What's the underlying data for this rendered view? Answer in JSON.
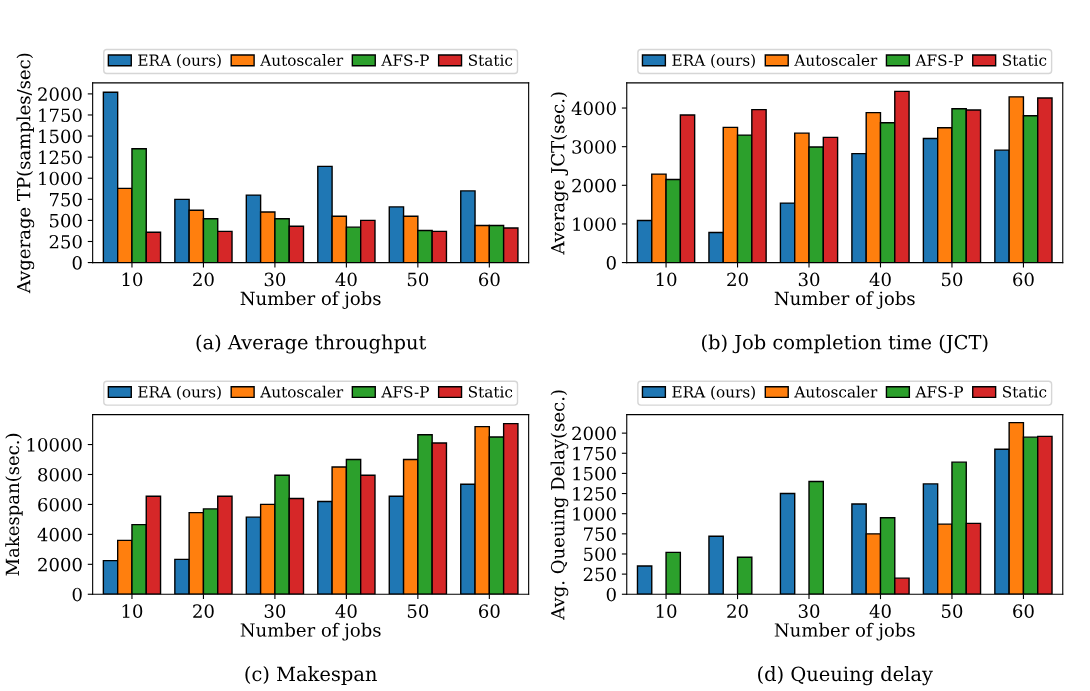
{
  "chart_data": [
    {
      "type": "bar",
      "title": "(a) Average throughput",
      "xlabel": "Number of jobs",
      "ylabel": "Avgerage TP(samples/sec)",
      "categories": [
        "10",
        "20",
        "30",
        "40",
        "50",
        "60"
      ],
      "ylim": [
        0,
        2130
      ],
      "yticks": [
        0,
        250,
        500,
        750,
        1000,
        1250,
        1500,
        1750,
        2000
      ],
      "legend": "top",
      "grid": false,
      "series": [
        {
          "name": "ERA (ours)",
          "color": "#1f77b4",
          "values": [
            2020,
            750,
            800,
            1140,
            660,
            850
          ]
        },
        {
          "name": "Autoscaler",
          "color": "#ff7f0e",
          "values": [
            880,
            620,
            600,
            550,
            550,
            440
          ]
        },
        {
          "name": "AFS-P",
          "color": "#2ca02c",
          "values": [
            1350,
            520,
            520,
            420,
            380,
            440
          ]
        },
        {
          "name": "Static",
          "color": "#d62728",
          "values": [
            360,
            370,
            430,
            500,
            370,
            410
          ]
        }
      ]
    },
    {
      "type": "bar",
      "title": "(b) Job completion time (JCT)",
      "xlabel": "Number of jobs",
      "ylabel": "Average JCT(sec.)",
      "categories": [
        "10",
        "20",
        "30",
        "40",
        "50",
        "60"
      ],
      "ylim": [
        0,
        4650
      ],
      "yticks": [
        0,
        1000,
        2000,
        3000,
        4000
      ],
      "legend": "top",
      "grid": false,
      "series": [
        {
          "name": "ERA (ours)",
          "color": "#1f77b4",
          "values": [
            1090,
            780,
            1540,
            2820,
            3210,
            2910
          ]
        },
        {
          "name": "Autoscaler",
          "color": "#ff7f0e",
          "values": [
            2290,
            3500,
            3350,
            3880,
            3490,
            4290
          ]
        },
        {
          "name": "AFS-P",
          "color": "#2ca02c",
          "values": [
            2150,
            3300,
            2990,
            3620,
            3980,
            3800
          ]
        },
        {
          "name": "Static",
          "color": "#d62728",
          "values": [
            3820,
            3960,
            3240,
            4430,
            3950,
            4260
          ]
        }
      ]
    },
    {
      "type": "bar",
      "title": "(c) Makespan",
      "xlabel": "Number of jobs",
      "ylabel": "Makespan(sec.)",
      "categories": [
        "10",
        "20",
        "30",
        "40",
        "50",
        "60"
      ],
      "ylim": [
        0,
        12000
      ],
      "yticks": [
        0,
        2000,
        4000,
        6000,
        8000,
        10000
      ],
      "legend": "top",
      "grid": false,
      "series": [
        {
          "name": "ERA (ours)",
          "color": "#1f77b4",
          "values": [
            2250,
            2330,
            5150,
            6200,
            6550,
            7350
          ]
        },
        {
          "name": "Autoscaler",
          "color": "#ff7f0e",
          "values": [
            3600,
            5450,
            6000,
            8500,
            9000,
            11200
          ]
        },
        {
          "name": "AFS-P",
          "color": "#2ca02c",
          "values": [
            4650,
            5700,
            7950,
            9000,
            10650,
            10500
          ]
        },
        {
          "name": "Static",
          "color": "#d62728",
          "values": [
            6550,
            6550,
            6400,
            7950,
            10100,
            11400
          ]
        }
      ]
    },
    {
      "type": "bar",
      "title": "(d) Queuing delay",
      "xlabel": "Number of jobs",
      "ylabel": "Avg. Queuing Delay(sec.)",
      "categories": [
        "10",
        "20",
        "30",
        "40",
        "50",
        "60"
      ],
      "ylim": [
        0,
        2230
      ],
      "yticks": [
        0,
        250,
        500,
        750,
        1000,
        1250,
        1500,
        1750,
        2000
      ],
      "legend": "top",
      "grid": false,
      "series": [
        {
          "name": "ERA (ours)",
          "color": "#1f77b4",
          "values": [
            350,
            720,
            1250,
            1120,
            1370,
            1800
          ]
        },
        {
          "name": "Autoscaler",
          "color": "#ff7f0e",
          "values": [
            null,
            null,
            null,
            750,
            870,
            2130
          ]
        },
        {
          "name": "AFS-P",
          "color": "#2ca02c",
          "values": [
            520,
            460,
            1400,
            950,
            1640,
            1950
          ]
        },
        {
          "name": "Static",
          "color": "#d62728",
          "values": [
            null,
            null,
            null,
            200,
            880,
            1960
          ]
        }
      ]
    }
  ]
}
